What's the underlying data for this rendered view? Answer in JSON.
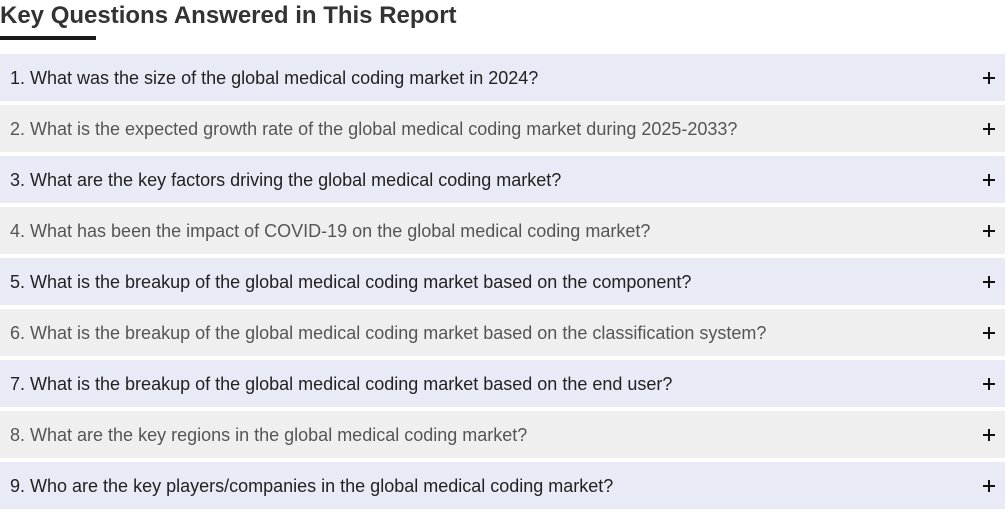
{
  "section": {
    "title": "Key Questions Answered in This Report"
  },
  "faq": {
    "expand_icon": "plus-icon",
    "items": [
      {
        "question": "1. What was the size of the global medical coding market in 2024?"
      },
      {
        "question": "2. What is the expected growth rate of the global medical coding market during 2025-2033?"
      },
      {
        "question": "3. What are the key factors driving the global medical coding market?"
      },
      {
        "question": "4. What has been the impact of COVID-19 on the global medical coding market?"
      },
      {
        "question": "5. What is the breakup of the global medical coding market based on the component?"
      },
      {
        "question": "6. What is the breakup of the global medical coding market based on the classification system?"
      },
      {
        "question": "7. What is the breakup of the global medical coding market based on the end user?"
      },
      {
        "question": "8. What are the key regions in the global medical coding market?"
      },
      {
        "question": "9. Who are the key players/companies in the global medical coding market?"
      }
    ]
  },
  "colors": {
    "odd_row_bg": "#e8eaf5",
    "even_row_bg": "#efefef",
    "title_text": "#333333",
    "underline": "#1a1a1a"
  }
}
